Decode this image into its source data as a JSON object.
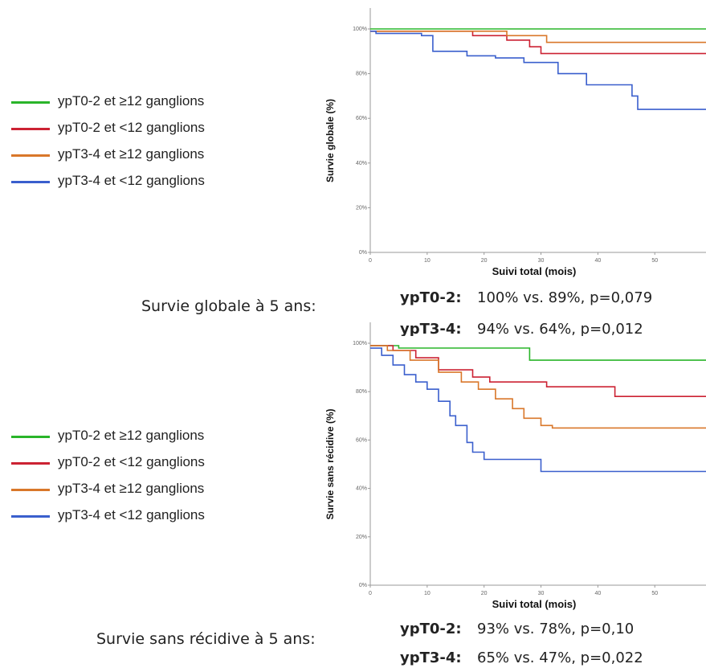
{
  "legend_top": [
    {
      "label": "ypT0-2 et ≥12 ganglions",
      "color": "#2ab52a"
    },
    {
      "label": "ypT0-2 et <12 ganglions",
      "color": "#cc2233"
    },
    {
      "label": "ypT3-4 et ≥12 ganglions",
      "color": "#d9772a"
    },
    {
      "label": "ypT3-4 et <12 ganglions",
      "color": "#3a5fcd"
    }
  ],
  "legend_bottom": [
    {
      "label": "ypT0-2 et ≥12 ganglions",
      "color": "#2ab52a"
    },
    {
      "label": "ypT0-2 et <12 ganglions",
      "color": "#cc2233"
    },
    {
      "label": "ypT3-4 et ≥12 ganglions",
      "color": "#d9772a"
    },
    {
      "label": "ypT3-4 et <12 ganglions",
      "color": "#3a5fcd"
    }
  ],
  "summary_top": {
    "caption": "Survie globale à 5 ans:",
    "rows": [
      {
        "group": "ypT0-2:",
        "text": "100% vs. 89%, p=0,079"
      },
      {
        "group": "ypT3-4:",
        "text": "94% vs. 64%, p=0,012"
      }
    ]
  },
  "summary_bottom": {
    "caption": "Survie sans récidive à 5 ans:",
    "rows": [
      {
        "group": "ypT0-2:",
        "text": "93% vs. 78%, p=0,10"
      },
      {
        "group": "ypT3-4:",
        "text": "65% vs. 47%, p=0,022"
      }
    ]
  },
  "chart_data": [
    {
      "type": "line",
      "step": true,
      "ylabel": "Survie globale (%)",
      "xlabel": "Suivi total (mois)",
      "xlim": [
        0,
        60
      ],
      "ylim": [
        0,
        100
      ],
      "xticks": [
        0,
        10,
        20,
        30,
        40,
        50,
        60
      ],
      "yticks": [
        "0%",
        "20%",
        "40%",
        "60%",
        "80%",
        "100%"
      ],
      "series": [
        {
          "name": "ypT0-2 et ≥12 ganglions",
          "color": "#2ab52a",
          "x": [
            0,
            60
          ],
          "y": [
            100,
            100
          ]
        },
        {
          "name": "ypT0-2 et <12 ganglions",
          "color": "#cc2233",
          "x": [
            0,
            18,
            24,
            28,
            30,
            60
          ],
          "y": [
            99,
            97,
            95,
            92,
            89,
            89
          ]
        },
        {
          "name": "ypT3-4 et ≥12 ganglions",
          "color": "#d9772a",
          "x": [
            0,
            24,
            31,
            60
          ],
          "y": [
            99,
            97,
            94,
            94
          ]
        },
        {
          "name": "ypT3-4 et <12 ganglions",
          "color": "#3a5fcd",
          "x": [
            0,
            1,
            9,
            11,
            17,
            22,
            27,
            33,
            38,
            46,
            47,
            60
          ],
          "y": [
            99,
            98,
            97,
            90,
            88,
            87,
            85,
            80,
            75,
            70,
            64,
            64
          ]
        }
      ]
    },
    {
      "type": "line",
      "step": true,
      "ylabel": "Survie sans récidive (%)",
      "xlabel": "Suivi total (mois)",
      "xlim": [
        0,
        60
      ],
      "ylim": [
        0,
        100
      ],
      "xticks": [
        0,
        10,
        20,
        30,
        40,
        50,
        60
      ],
      "yticks": [
        "0%",
        "20%",
        "40%",
        "60%",
        "80%",
        "100%"
      ],
      "series": [
        {
          "name": "ypT0-2 et ≥12 ganglions",
          "color": "#2ab52a",
          "x": [
            0,
            5,
            28,
            60
          ],
          "y": [
            99,
            98,
            93,
            93
          ]
        },
        {
          "name": "ypT0-2 et <12 ganglions",
          "color": "#cc2233",
          "x": [
            0,
            4,
            8,
            12,
            18,
            21,
            31,
            43,
            60
          ],
          "y": [
            99,
            97,
            94,
            89,
            86,
            84,
            82,
            78,
            78
          ]
        },
        {
          "name": "ypT3-4 et ≥12 ganglions",
          "color": "#d9772a",
          "x": [
            0,
            3,
            7,
            12,
            16,
            19,
            22,
            25,
            27,
            30,
            32,
            60
          ],
          "y": [
            99,
            97,
            93,
            88,
            84,
            81,
            77,
            73,
            69,
            66,
            65,
            65
          ]
        },
        {
          "name": "ypT3-4 et <12 ganglions",
          "color": "#3a5fcd",
          "x": [
            0,
            2,
            4,
            6,
            8,
            10,
            12,
            14,
            15,
            17,
            18,
            20,
            30,
            60
          ],
          "y": [
            98,
            95,
            91,
            87,
            84,
            81,
            76,
            70,
            66,
            59,
            55,
            52,
            47,
            47
          ]
        }
      ]
    }
  ]
}
